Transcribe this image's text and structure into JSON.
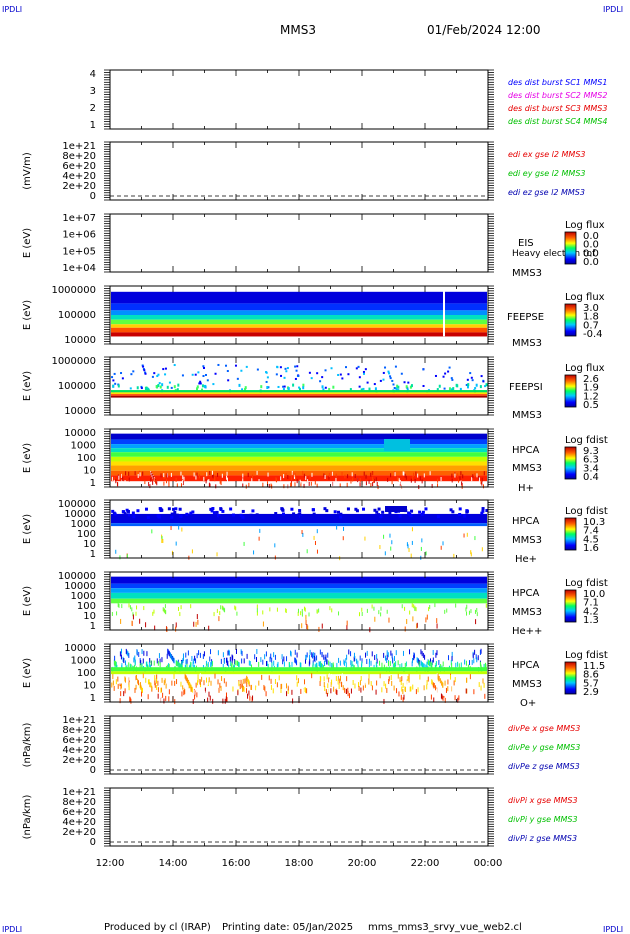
{
  "corner_label": "IPDLI",
  "header": {
    "spacecraft": "MMS3",
    "datetime": "01/Feb/2024 12:00"
  },
  "footer": {
    "produced_by": "Produced by cl (IRAP)",
    "printing_date": "Printing date: 05/Jan/2025",
    "script": "mms_mms3_srvy_vue_web2.cl"
  },
  "colors": {
    "blue": "#0000ff",
    "magenta": "#e600e6",
    "red": "#e60000",
    "green": "#00c000",
    "darkblue": "#0000b0"
  },
  "chart_data": [
    {
      "type": "line",
      "panel": "burst",
      "ylabel": "",
      "yticks": [
        "4",
        "3",
        "2",
        "1"
      ],
      "legend": [
        {
          "label": "des dist burst SC1 MMS1",
          "color": "#0000ff"
        },
        {
          "label": "des dist burst SC2 MMS2",
          "color": "#e600e6"
        },
        {
          "label": "des dist burst SC3 MMS3",
          "color": "#e60000"
        },
        {
          "label": "des dist burst SC4 MMS4",
          "color": "#00c000"
        }
      ]
    },
    {
      "type": "line",
      "panel": "efield",
      "ylabel": "(mV/m)",
      "yticks": [
        "1e+21",
        "8e+20",
        "6e+20",
        "4e+20",
        "2e+20",
        "0"
      ],
      "legend": [
        {
          "label": "edi ex gse l2 MMS3",
          "color": "#e60000"
        },
        {
          "label": "edi ey gse l2 MMS3",
          "color": "#00c000"
        },
        {
          "label": "edi ez gse l2 MMS3",
          "color": "#0000b0"
        }
      ]
    },
    {
      "type": "heatmap",
      "panel": "eis",
      "ylabel": "E (eV)",
      "yticks": [
        "1e+07",
        "1e+06",
        "1e+05",
        "1e+04"
      ],
      "labels": [
        "EIS",
        "Heavy electron tof",
        "MMS3"
      ],
      "colorbar": {
        "title": "Log flux",
        "ticks": [
          "0.0",
          "0.0",
          "0.0",
          "0.0"
        ]
      }
    },
    {
      "type": "heatmap",
      "panel": "feepse",
      "ylabel": "E (eV)",
      "yticks": [
        "1000000",
        "100000",
        "10000"
      ],
      "labels": [
        "FEEPSE",
        "MMS3"
      ],
      "colorbar": {
        "title": "Log flux",
        "ticks": [
          "3.0",
          "1.8",
          "0.7",
          "-0.4"
        ]
      }
    },
    {
      "type": "heatmap",
      "panel": "feepsi",
      "ylabel": "E (eV)",
      "yticks": [
        "1000000",
        "100000",
        "10000"
      ],
      "labels": [
        "FEEPSI",
        "MMS3"
      ],
      "colorbar": {
        "title": "Log flux",
        "ticks": [
          "2.6",
          "1.9",
          "1.2",
          "0.5"
        ]
      }
    },
    {
      "type": "heatmap",
      "panel": "hpca_h",
      "ylabel": "E (eV)",
      "yticks": [
        "10000",
        "1000",
        "100",
        "10",
        "1"
      ],
      "labels": [
        "HPCA",
        "MMS3",
        "H+"
      ],
      "colorbar": {
        "title": "Log fdist",
        "ticks": [
          "9.3",
          "6.3",
          "3.4",
          "0.4"
        ]
      }
    },
    {
      "type": "heatmap",
      "panel": "hpca_he",
      "ylabel": "E (eV)",
      "yticks": [
        "100000",
        "10000",
        "1000",
        "100",
        "10",
        "1"
      ],
      "labels": [
        "HPCA",
        "MMS3",
        "He+"
      ],
      "colorbar": {
        "title": "Log fdist",
        "ticks": [
          "10.3",
          "7.4",
          "4.5",
          "1.6"
        ]
      }
    },
    {
      "type": "heatmap",
      "panel": "hpca_hepp",
      "ylabel": "E (eV)",
      "yticks": [
        "100000",
        "10000",
        "1000",
        "100",
        "10",
        "1"
      ],
      "labels": [
        "HPCA",
        "MMS3",
        "He++"
      ],
      "colorbar": {
        "title": "Log fdist",
        "ticks": [
          "10.0",
          "7.1",
          "4.2",
          "1.3"
        ]
      }
    },
    {
      "type": "heatmap",
      "panel": "hpca_o",
      "ylabel": "E (eV)",
      "yticks": [
        "10000",
        "1000",
        "100",
        "10",
        "1"
      ],
      "labels": [
        "HPCA",
        "MMS3",
        "O+"
      ],
      "colorbar": {
        "title": "Log fdist",
        "ticks": [
          "11.5",
          "8.6",
          "5.7",
          "2.9"
        ]
      }
    },
    {
      "type": "line",
      "panel": "divpe",
      "ylabel": "(nPa/km)",
      "yticks": [
        "1e+21",
        "8e+20",
        "6e+20",
        "4e+20",
        "2e+20",
        "0"
      ],
      "legend": [
        {
          "label": "divPe x gse MMS3",
          "color": "#e60000"
        },
        {
          "label": "divPe y gse MMS3",
          "color": "#00c000"
        },
        {
          "label": "divPe z gse MMS3",
          "color": "#0000b0"
        }
      ]
    },
    {
      "type": "line",
      "panel": "divpi",
      "ylabel": "(nPa/km)",
      "yticks": [
        "1e+21",
        "8e+20",
        "6e+20",
        "4e+20",
        "2e+20",
        "0"
      ],
      "legend": [
        {
          "label": "divPi x gse MMS3",
          "color": "#e60000"
        },
        {
          "label": "divPi y gse MMS3",
          "color": "#00c000"
        },
        {
          "label": "divPi z gse MMS3",
          "color": "#0000b0"
        }
      ]
    }
  ],
  "x_axis": {
    "ticks": [
      "12:00",
      "14:00",
      "16:00",
      "18:00",
      "20:00",
      "22:00",
      "00:00"
    ]
  }
}
